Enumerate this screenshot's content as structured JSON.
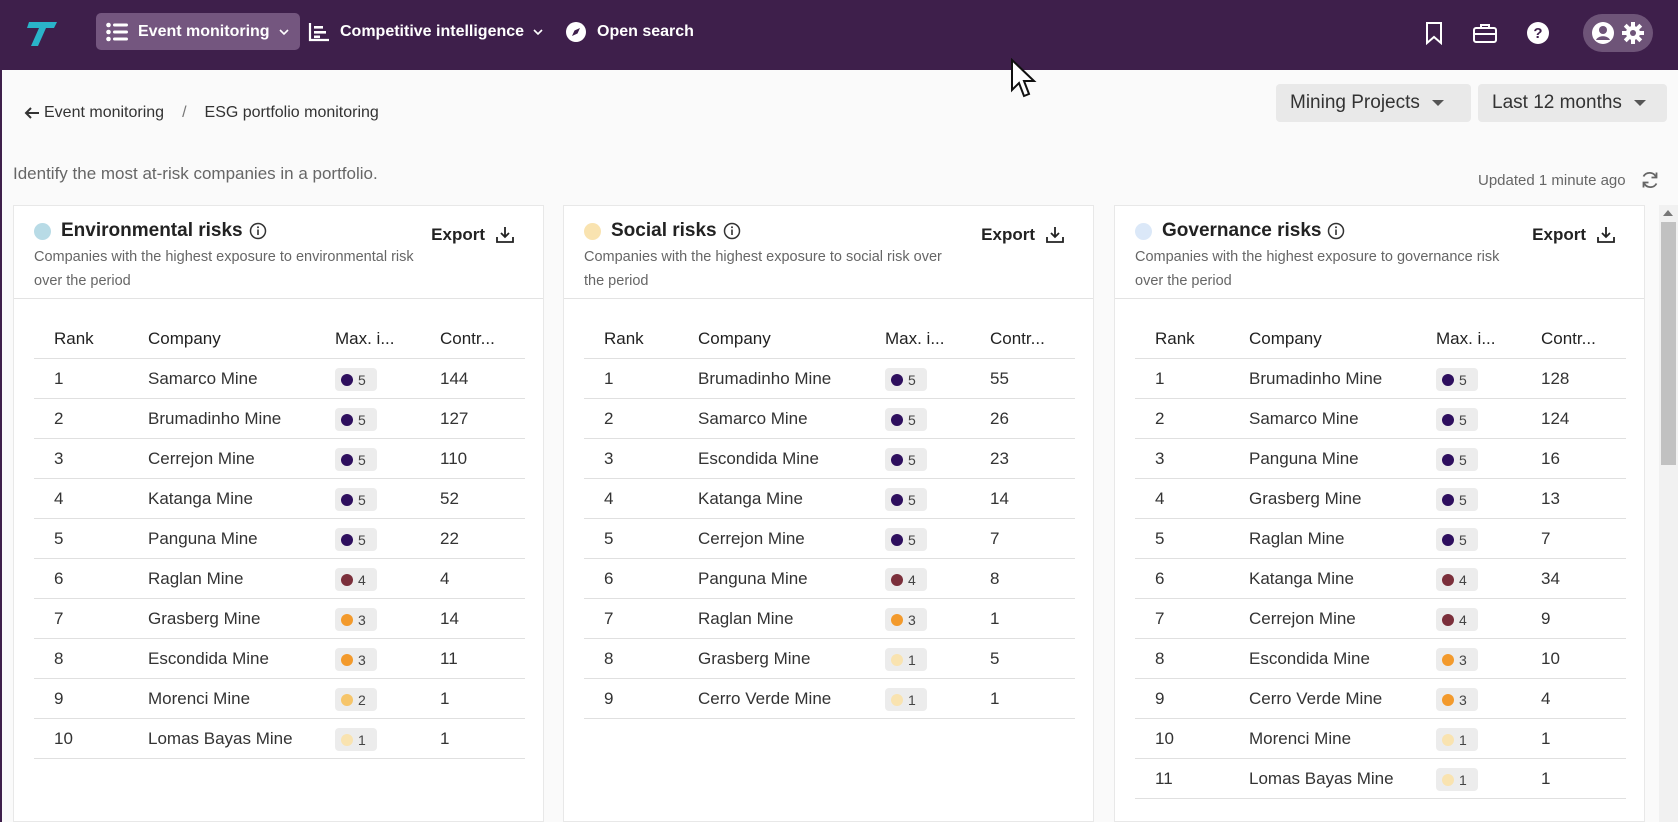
{
  "nav": {
    "items": [
      {
        "label": "Event monitoring",
        "icon": "list-icon",
        "active": true,
        "has_chevron": true
      },
      {
        "label": "Competitive intelligence",
        "icon": "chart-icon",
        "active": false,
        "has_chevron": true
      },
      {
        "label": "Open search",
        "icon": "compass-icon",
        "active": false,
        "has_chevron": false
      }
    ],
    "right_icons": [
      "bookmark-icon",
      "briefcase-icon",
      "help-icon",
      "account-icon",
      "gear-icon"
    ]
  },
  "breadcrumb": {
    "back_label": "Event monitoring",
    "separator": "/",
    "current": "ESG portfolio monitoring"
  },
  "filters": {
    "portfolio": "Mining Projects",
    "period": "Last 12 months"
  },
  "page": {
    "subtitle": "Identify the most at-risk companies in a portfolio.",
    "updated": "Updated 1 minute ago"
  },
  "colors": {
    "level5": "#2e0f5e",
    "level4": "#7b2f3b",
    "level3": "#f39a2c",
    "level2": "#f6c56a",
    "level1": "#f9e3b0",
    "env_dot": "#b8dbe6",
    "social_dot": "#f9e3b0",
    "gov_dot": "#dbe8f8"
  },
  "columns": {
    "rank": "Rank",
    "company": "Company",
    "max": "Max. i...",
    "contr": "Contr..."
  },
  "panels": [
    {
      "title": "Environmental risks",
      "desc": "Companies with the highest exposure to environmental risk over the period",
      "export": "Export",
      "dot": "env_dot",
      "rows": [
        {
          "rank": "1",
          "company": "Samarco Mine",
          "max": "5",
          "contr": "144"
        },
        {
          "rank": "2",
          "company": "Brumadinho Mine",
          "max": "5",
          "contr": "127"
        },
        {
          "rank": "3",
          "company": "Cerrejon Mine",
          "max": "5",
          "contr": "110"
        },
        {
          "rank": "4",
          "company": "Katanga Mine",
          "max": "5",
          "contr": "52"
        },
        {
          "rank": "5",
          "company": "Panguna Mine",
          "max": "5",
          "contr": "22"
        },
        {
          "rank": "6",
          "company": "Raglan Mine",
          "max": "4",
          "contr": "4"
        },
        {
          "rank": "7",
          "company": "Grasberg Mine",
          "max": "3",
          "contr": "14"
        },
        {
          "rank": "8",
          "company": "Escondida Mine",
          "max": "3",
          "contr": "11"
        },
        {
          "rank": "9",
          "company": "Morenci Mine",
          "max": "2",
          "contr": "1"
        },
        {
          "rank": "10",
          "company": "Lomas Bayas Mine",
          "max": "1",
          "contr": "1"
        }
      ]
    },
    {
      "title": "Social risks",
      "desc": "Companies with the highest exposure to social risk over the period",
      "export": "Export",
      "dot": "social_dot",
      "rows": [
        {
          "rank": "1",
          "company": "Brumadinho Mine",
          "max": "5",
          "contr": "55"
        },
        {
          "rank": "2",
          "company": "Samarco Mine",
          "max": "5",
          "contr": "26"
        },
        {
          "rank": "3",
          "company": "Escondida Mine",
          "max": "5",
          "contr": "23"
        },
        {
          "rank": "4",
          "company": "Katanga Mine",
          "max": "5",
          "contr": "14"
        },
        {
          "rank": "5",
          "company": "Cerrejon Mine",
          "max": "5",
          "contr": "7"
        },
        {
          "rank": "6",
          "company": "Panguna Mine",
          "max": "4",
          "contr": "8"
        },
        {
          "rank": "7",
          "company": "Raglan Mine",
          "max": "3",
          "contr": "1"
        },
        {
          "rank": "8",
          "company": "Grasberg Mine",
          "max": "1",
          "contr": "5"
        },
        {
          "rank": "9",
          "company": "Cerro Verde Mine",
          "max": "1",
          "contr": "1"
        }
      ]
    },
    {
      "title": "Governance risks",
      "desc": "Companies with the highest exposure to governance risk over the period",
      "export": "Export",
      "dot": "gov_dot",
      "rows": [
        {
          "rank": "1",
          "company": "Brumadinho Mine",
          "max": "5",
          "contr": "128"
        },
        {
          "rank": "2",
          "company": "Samarco Mine",
          "max": "5",
          "contr": "124"
        },
        {
          "rank": "3",
          "company": "Panguna Mine",
          "max": "5",
          "contr": "16"
        },
        {
          "rank": "4",
          "company": "Grasberg Mine",
          "max": "5",
          "contr": "13"
        },
        {
          "rank": "5",
          "company": "Raglan Mine",
          "max": "5",
          "contr": "7"
        },
        {
          "rank": "6",
          "company": "Katanga Mine",
          "max": "4",
          "contr": "34"
        },
        {
          "rank": "7",
          "company": "Cerrejon Mine",
          "max": "4",
          "contr": "9"
        },
        {
          "rank": "8",
          "company": "Escondida Mine",
          "max": "3",
          "contr": "10"
        },
        {
          "rank": "9",
          "company": "Cerro Verde Mine",
          "max": "3",
          "contr": "4"
        },
        {
          "rank": "10",
          "company": "Morenci Mine",
          "max": "1",
          "contr": "1"
        },
        {
          "rank": "11",
          "company": "Lomas Bayas Mine",
          "max": "1",
          "contr": "1"
        }
      ]
    }
  ]
}
